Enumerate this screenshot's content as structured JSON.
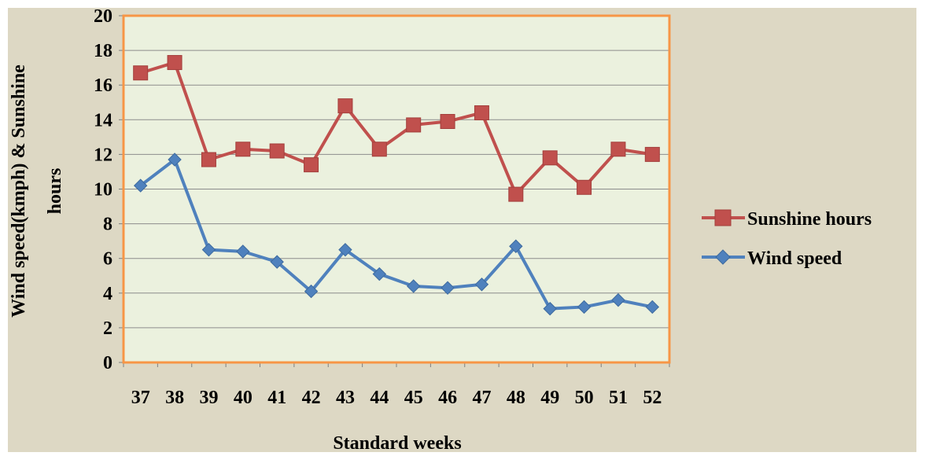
{
  "chart_data": {
    "type": "line",
    "xlabel": "Standard weeks",
    "ylabel": "Wind speed(kmph) & Sunshine hours",
    "ylabel_lines": [
      "Wind speed(kmph) & Sunshine",
      "hours"
    ],
    "categories": [
      "37",
      "38",
      "39",
      "40",
      "41",
      "42",
      "43",
      "44",
      "45",
      "46",
      "47",
      "48",
      "49",
      "50",
      "51",
      "52"
    ],
    "ylim": [
      0,
      20
    ],
    "yticks": [
      "0",
      "2",
      "4",
      "6",
      "8",
      "10",
      "12",
      "14",
      "16",
      "18",
      "20"
    ],
    "grid": true,
    "legend_position": "right",
    "series": [
      {
        "name": "Sunshine hours",
        "color": "#c0504d",
        "marker": "square",
        "values": [
          16.7,
          17.3,
          11.7,
          12.3,
          12.2,
          11.4,
          14.8,
          12.3,
          13.7,
          13.9,
          14.4,
          9.7,
          11.8,
          10.1,
          12.3,
          12.0
        ]
      },
      {
        "name": "Wind speed",
        "color": "#4f81bd",
        "marker": "diamond",
        "values": [
          10.2,
          11.7,
          6.5,
          6.4,
          5.8,
          4.1,
          6.5,
          5.1,
          4.4,
          4.3,
          4.5,
          6.7,
          3.1,
          3.2,
          3.6,
          3.2
        ]
      }
    ],
    "colors": {
      "chart_background": "#ddd8c4",
      "plot_background": "#ebf1de",
      "plot_border": "#f79646",
      "gridline": "#8c8c8c"
    }
  }
}
